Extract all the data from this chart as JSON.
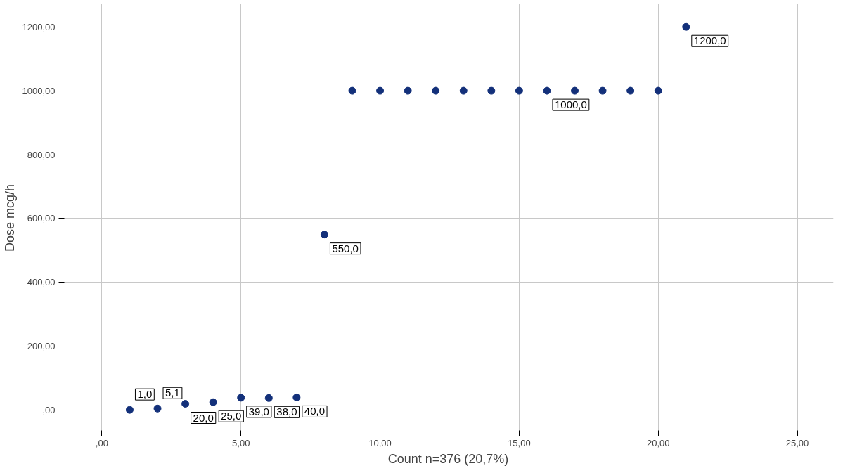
{
  "chart_data": {
    "type": "scatter",
    "xlabel": "Count n=376 (20,7%)",
    "ylabel": "Dose mcg/h",
    "x": [
      1,
      2,
      3,
      4,
      5,
      6,
      7,
      8,
      9,
      10,
      11,
      12,
      13,
      14,
      15,
      16,
      17,
      18,
      19,
      20,
      21
    ],
    "series": [
      {
        "color": "#13307a",
        "values": [
          1,
          5.1,
          20,
          25,
          39,
          38,
          40,
          550,
          1000,
          1000,
          1000,
          1000,
          1000,
          1000,
          1000,
          1000,
          1000,
          1000,
          1000,
          1000,
          1200
        ],
        "value_labels": [
          "1,0",
          "5,1",
          "20,0",
          "25,0",
          "39,0",
          "38,0",
          "40,0",
          "550,0",
          null,
          null,
          null,
          null,
          null,
          null,
          null,
          "1000,0",
          null,
          null,
          null,
          null,
          "1200,0"
        ]
      }
    ],
    "xlim": [
      -1.4,
      26.3
    ],
    "ylim": [
      -68,
      1272
    ],
    "xticks": [
      {
        "value": 0,
        "label": ",00"
      },
      {
        "value": 5,
        "label": "5,00"
      },
      {
        "value": 10,
        "label": "10,00"
      },
      {
        "value": 15,
        "label": "15,00"
      },
      {
        "value": 20,
        "label": "20,00"
      },
      {
        "value": 25,
        "label": "25,00"
      }
    ],
    "yticks": [
      {
        "value": 0,
        "label": ",00"
      },
      {
        "value": 200,
        "label": "200,00"
      },
      {
        "value": 400,
        "label": "400,00"
      },
      {
        "value": 600,
        "label": "600,00"
      },
      {
        "value": 800,
        "label": "800,00"
      },
      {
        "value": 1000,
        "label": "1000,00"
      },
      {
        "value": 1200,
        "label": "1200,00"
      }
    ],
    "grid": true,
    "marker": "circle"
  }
}
